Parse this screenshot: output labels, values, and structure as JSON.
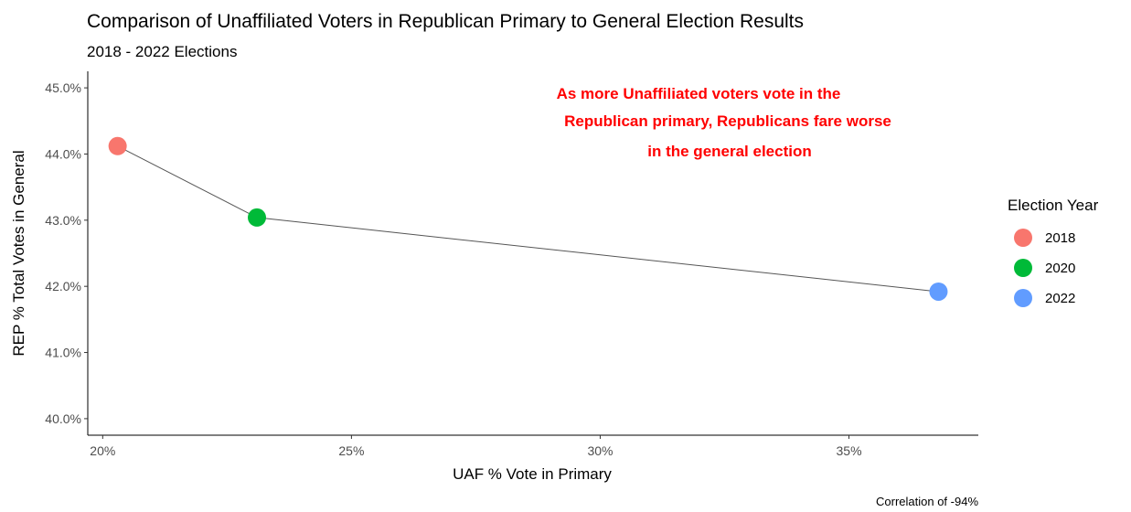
{
  "chart_data": {
    "type": "scatter",
    "title": "Comparison of Unaffiliated Voters in Republican Primary to General Election Results",
    "subtitle": "2018 - 2022 Elections",
    "xlabel": "UAF % Vote in Primary",
    "ylabel": "REP % Total Votes in General",
    "xlim": [
      19.7,
      37.6
    ],
    "ylim": [
      39.75,
      45.25
    ],
    "x_ticks": [
      20,
      25,
      30,
      35
    ],
    "x_tick_labels": [
      "20%",
      "25%",
      "30%",
      "35%"
    ],
    "y_ticks": [
      40,
      41,
      42,
      43,
      44,
      45
    ],
    "y_tick_labels": [
      "40.0%",
      "41.0%",
      "42.0%",
      "43.0%",
      "44.0%",
      "45.0%"
    ],
    "grid": false,
    "connect_points": true,
    "line_color": "#555555",
    "legend": {
      "title": "Election Year",
      "placement": "right",
      "entries": [
        "2018",
        "2020",
        "2022"
      ]
    },
    "series": [
      {
        "name": "2018",
        "color": "#F8766D",
        "x": 20.3,
        "y": 44.12
      },
      {
        "name": "2020",
        "color": "#00BA38",
        "x": 23.1,
        "y": 43.04
      },
      {
        "name": "2022",
        "color": "#619CFF",
        "x": 36.8,
        "y": 41.92
      }
    ],
    "annotation": {
      "lines": [
        "As more Unaffiliated voters vote in the",
        "Republican primary, Republicans fare worse",
        "in the general election"
      ],
      "color": "#FF0000"
    },
    "caption": "Correlation of -94%"
  }
}
